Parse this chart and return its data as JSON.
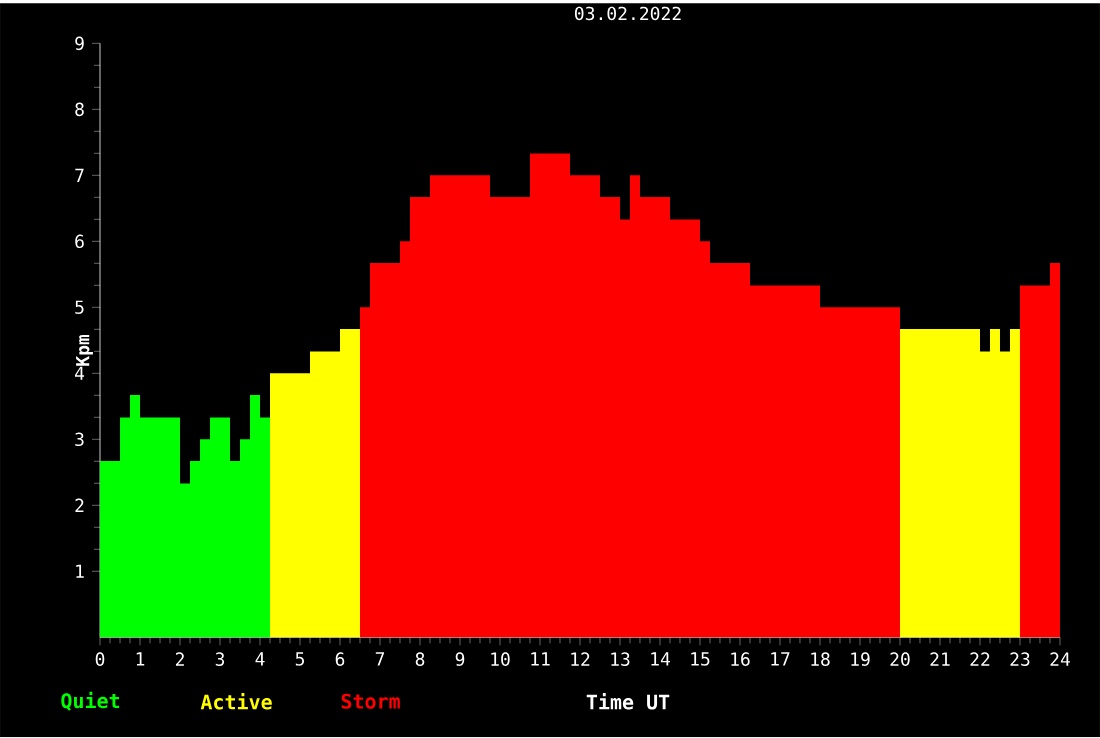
{
  "chart_data": {
    "type": "area",
    "title": "03.02.2022",
    "xlabel": "Time UT",
    "ylabel": "Kpm",
    "xlim": [
      0,
      24
    ],
    "xticks": [
      0,
      1,
      2,
      3,
      4,
      5,
      6,
      7,
      8,
      9,
      10,
      11,
      12,
      13,
      14,
      15,
      16,
      17,
      18,
      19,
      20,
      21,
      22,
      23,
      24
    ],
    "ylim": [
      0,
      9
    ],
    "yticks": [
      1,
      2,
      3,
      4,
      5,
      6,
      7,
      8,
      9
    ],
    "series": [
      {
        "name": "Quiet",
        "color": "#00ff00",
        "x": [
          0,
          0.5,
          0.5,
          0.75,
          0.75,
          1,
          1,
          2,
          2,
          2.25,
          2.25,
          2.5,
          2.5,
          2.75,
          2.75,
          3.25,
          3.25,
          3.5,
          3.5,
          3.75,
          3.75,
          4,
          4,
          4.25
        ],
        "values": [
          2.67,
          2.67,
          3.33,
          3.33,
          3.67,
          3.67,
          3.33,
          3.33,
          2.33,
          2.33,
          2.67,
          2.67,
          3.0,
          3.0,
          3.33,
          3.33,
          2.67,
          2.67,
          3.0,
          3.0,
          3.67,
          3.67,
          3.33,
          3.33
        ]
      },
      {
        "name": "Active",
        "color": "#ffff00",
        "x": [
          4.25,
          5.25,
          5.25,
          6,
          6,
          6.5,
          null,
          20,
          22,
          22,
          22.25,
          22.25,
          22.5,
          22.5,
          22.75,
          22.75,
          23
        ],
        "values": [
          4.0,
          4.0,
          4.33,
          4.33,
          4.67,
          4.67,
          null,
          4.67,
          4.67,
          4.33,
          4.33,
          4.67,
          4.67,
          4.33,
          4.33,
          4.67,
          4.67
        ]
      },
      {
        "name": "Storm",
        "color": "#ff0000",
        "x": [
          6.5,
          6.75,
          6.75,
          7.5,
          7.5,
          7.75,
          7.75,
          8.25,
          8.25,
          9.75,
          9.75,
          10.75,
          10.75,
          11.75,
          11.75,
          12.5,
          12.5,
          13,
          13,
          13.25,
          13.25,
          13.5,
          13.5,
          14.25,
          14.25,
          15,
          15,
          15.25,
          15.25,
          16.25,
          16.25,
          18,
          18,
          20,
          null,
          23,
          23.75,
          23.75,
          24
        ],
        "values": [
          5.0,
          5.0,
          5.67,
          5.67,
          6.0,
          6.0,
          6.67,
          6.67,
          7.0,
          7.0,
          6.67,
          6.67,
          7.33,
          7.33,
          7.0,
          7.0,
          6.67,
          6.67,
          6.33,
          6.33,
          7.0,
          7.0,
          6.67,
          6.67,
          6.33,
          6.33,
          6.0,
          6.0,
          5.67,
          5.67,
          5.33,
          5.33,
          5.0,
          5.0,
          null,
          5.33,
          5.33,
          5.67,
          5.67
        ]
      }
    ]
  }
}
